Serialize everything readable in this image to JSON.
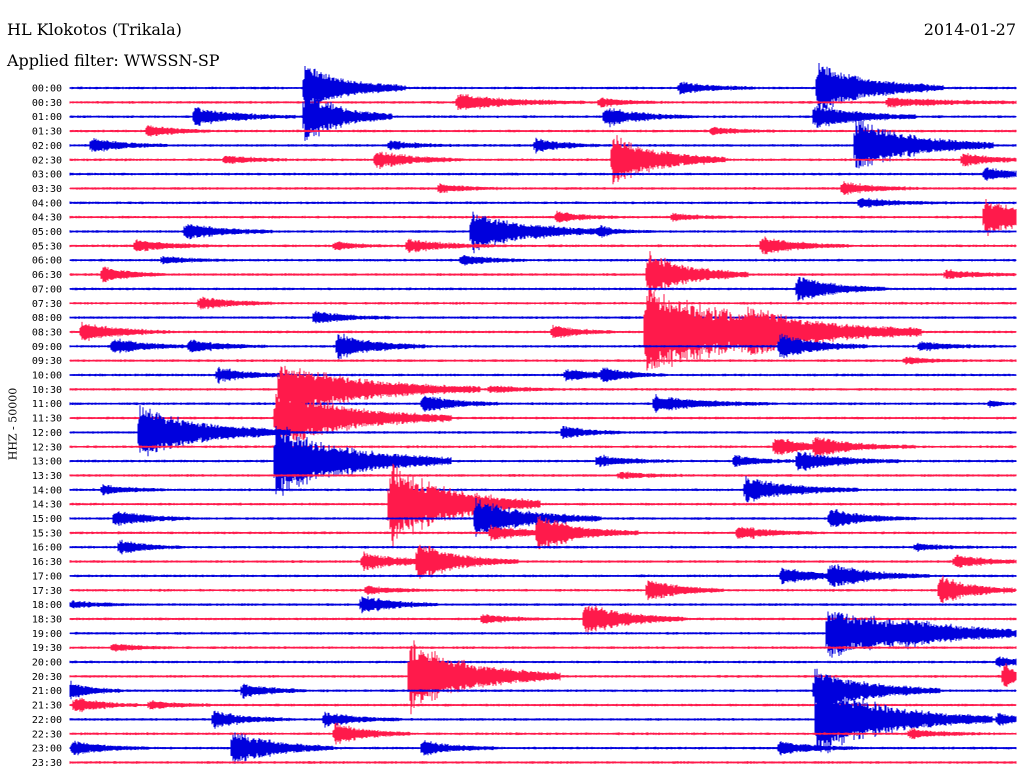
{
  "header": {
    "station": "HL Klokotos (Trikala)",
    "date": "2014-01-27",
    "filter": "Applied filter: WWSSN-SP"
  },
  "chart_data": {
    "type": "line",
    "title": "HL Klokotos (Trikala)",
    "subtitle": "Applied filter: WWSSN-SP",
    "ylabel": "HHZ - 50000",
    "xlabel": "",
    "series_colors": [
      "#0000dd",
      "#ff1a4b"
    ],
    "row_labels": [
      "00:00",
      "00:30",
      "01:00",
      "01:30",
      "02:00",
      "02:30",
      "03:00",
      "03:30",
      "04:00",
      "04:30",
      "05:00",
      "05:30",
      "06:00",
      "06:30",
      "07:00",
      "07:30",
      "08:00",
      "08:30",
      "09:00",
      "09:30",
      "10:00",
      "10:30",
      "11:00",
      "11:30",
      "12:00",
      "12:30",
      "13:00",
      "13:30",
      "14:00",
      "14:30",
      "15:00",
      "15:30",
      "16:00",
      "16:30",
      "17:00",
      "17:30",
      "18:00",
      "18:30",
      "19:00",
      "19:30",
      "20:00",
      "20:30",
      "21:00",
      "21:30",
      "22:00",
      "22:30",
      "23:00",
      "23:30"
    ],
    "events": [
      {
        "row": 0,
        "x": 305,
        "amp": 26,
        "dur": 40
      },
      {
        "row": 0,
        "x": 818,
        "amp": 28,
        "dur": 50
      },
      {
        "row": 0,
        "x": 680,
        "amp": 7,
        "dur": 30
      },
      {
        "row": 1,
        "x": 458,
        "amp": 9,
        "dur": 50
      },
      {
        "row": 1,
        "x": 600,
        "amp": 5,
        "dur": 25
      },
      {
        "row": 1,
        "x": 888,
        "amp": 5,
        "dur": 60
      },
      {
        "row": 2,
        "x": 305,
        "amp": 30,
        "dur": 35
      },
      {
        "row": 2,
        "x": 605,
        "amp": 11,
        "dur": 35
      },
      {
        "row": 2,
        "x": 815,
        "amp": 14,
        "dur": 40
      },
      {
        "row": 2,
        "x": 195,
        "amp": 10,
        "dur": 40
      },
      {
        "row": 3,
        "x": 148,
        "amp": 7,
        "dur": 25
      },
      {
        "row": 3,
        "x": 712,
        "amp": 4,
        "dur": 25
      },
      {
        "row": 4,
        "x": 856,
        "amp": 30,
        "dur": 55
      },
      {
        "row": 4,
        "x": 92,
        "amp": 8,
        "dur": 30
      },
      {
        "row": 4,
        "x": 536,
        "amp": 8,
        "dur": 25
      },
      {
        "row": 4,
        "x": 390,
        "amp": 5,
        "dur": 25
      },
      {
        "row": 5,
        "x": 613,
        "amp": 28,
        "dur": 45
      },
      {
        "row": 5,
        "x": 376,
        "amp": 10,
        "dur": 35
      },
      {
        "row": 5,
        "x": 963,
        "amp": 7,
        "dur": 30
      },
      {
        "row": 5,
        "x": 225,
        "amp": 5,
        "dur": 25
      },
      {
        "row": 6,
        "x": 985,
        "amp": 7,
        "dur": 30
      },
      {
        "row": 7,
        "x": 843,
        "amp": 7,
        "dur": 30
      },
      {
        "row": 7,
        "x": 440,
        "amp": 5,
        "dur": 25
      },
      {
        "row": 8,
        "x": 860,
        "amp": 5,
        "dur": 35
      },
      {
        "row": 9,
        "x": 985,
        "amp": 22,
        "dur": 40
      },
      {
        "row": 9,
        "x": 557,
        "amp": 6,
        "dur": 25
      },
      {
        "row": 9,
        "x": 673,
        "amp": 4,
        "dur": 25
      },
      {
        "row": 10,
        "x": 472,
        "amp": 22,
        "dur": 55
      },
      {
        "row": 10,
        "x": 186,
        "amp": 9,
        "dur": 35
      },
      {
        "row": 10,
        "x": 600,
        "amp": 4,
        "dur": 25
      },
      {
        "row": 11,
        "x": 762,
        "amp": 10,
        "dur": 35
      },
      {
        "row": 11,
        "x": 136,
        "amp": 7,
        "dur": 30
      },
      {
        "row": 11,
        "x": 408,
        "amp": 7,
        "dur": 35
      },
      {
        "row": 11,
        "x": 335,
        "amp": 5,
        "dur": 20
      },
      {
        "row": 12,
        "x": 462,
        "amp": 6,
        "dur": 25
      },
      {
        "row": 12,
        "x": 163,
        "amp": 4,
        "dur": 25
      },
      {
        "row": 13,
        "x": 103,
        "amp": 9,
        "dur": 25
      },
      {
        "row": 13,
        "x": 946,
        "amp": 5,
        "dur": 30
      },
      {
        "row": 13,
        "x": 648,
        "amp": 25,
        "dur": 40
      },
      {
        "row": 14,
        "x": 798,
        "amp": 14,
        "dur": 35
      },
      {
        "row": 15,
        "x": 200,
        "amp": 7,
        "dur": 30
      },
      {
        "row": 16,
        "x": 315,
        "amp": 7,
        "dur": 30
      },
      {
        "row": 17,
        "x": 646,
        "amp": 48,
        "dur": 110
      },
      {
        "row": 17,
        "x": 82,
        "amp": 11,
        "dur": 35
      },
      {
        "row": 17,
        "x": 749,
        "amp": 14,
        "dur": 35
      },
      {
        "row": 17,
        "x": 553,
        "amp": 7,
        "dur": 25
      },
      {
        "row": 18,
        "x": 338,
        "amp": 14,
        "dur": 35
      },
      {
        "row": 18,
        "x": 780,
        "amp": 14,
        "dur": 35
      },
      {
        "row": 18,
        "x": 113,
        "amp": 9,
        "dur": 30
      },
      {
        "row": 18,
        "x": 190,
        "amp": 7,
        "dur": 30
      },
      {
        "row": 18,
        "x": 920,
        "amp": 5,
        "dur": 30
      },
      {
        "row": 19,
        "x": 905,
        "amp": 4,
        "dur": 25
      },
      {
        "row": 20,
        "x": 218,
        "amp": 8,
        "dur": 30
      },
      {
        "row": 20,
        "x": 566,
        "amp": 7,
        "dur": 30
      },
      {
        "row": 20,
        "x": 603,
        "amp": 7,
        "dur": 25
      },
      {
        "row": 21,
        "x": 280,
        "amp": 30,
        "dur": 80
      },
      {
        "row": 21,
        "x": 490,
        "amp": 4,
        "dur": 30
      },
      {
        "row": 22,
        "x": 423,
        "amp": 10,
        "dur": 30
      },
      {
        "row": 22,
        "x": 655,
        "amp": 9,
        "dur": 45
      },
      {
        "row": 22,
        "x": 990,
        "amp": 4,
        "dur": 10
      },
      {
        "row": 23,
        "x": 276,
        "amp": 34,
        "dur": 70
      },
      {
        "row": 24,
        "x": 140,
        "amp": 30,
        "dur": 60
      },
      {
        "row": 24,
        "x": 563,
        "amp": 7,
        "dur": 25
      },
      {
        "row": 25,
        "x": 775,
        "amp": 10,
        "dur": 30
      },
      {
        "row": 25,
        "x": 815,
        "amp": 9,
        "dur": 40
      },
      {
        "row": 26,
        "x": 276,
        "amp": 40,
        "dur": 70
      },
      {
        "row": 26,
        "x": 798,
        "amp": 11,
        "dur": 40
      },
      {
        "row": 26,
        "x": 735,
        "amp": 6,
        "dur": 25
      },
      {
        "row": 26,
        "x": 598,
        "amp": 6,
        "dur": 30
      },
      {
        "row": 27,
        "x": 620,
        "amp": 4,
        "dur": 25
      },
      {
        "row": 28,
        "x": 746,
        "amp": 14,
        "dur": 45
      },
      {
        "row": 28,
        "x": 103,
        "amp": 5,
        "dur": 25
      },
      {
        "row": 29,
        "x": 390,
        "amp": 45,
        "dur": 60
      },
      {
        "row": 30,
        "x": 476,
        "amp": 22,
        "dur": 50
      },
      {
        "row": 30,
        "x": 115,
        "amp": 9,
        "dur": 30
      },
      {
        "row": 30,
        "x": 830,
        "amp": 10,
        "dur": 35
      },
      {
        "row": 31,
        "x": 538,
        "amp": 18,
        "dur": 40
      },
      {
        "row": 31,
        "x": 491,
        "amp": 8,
        "dur": 35
      },
      {
        "row": 31,
        "x": 738,
        "amp": 8,
        "dur": 30
      },
      {
        "row": 32,
        "x": 120,
        "amp": 8,
        "dur": 25
      },
      {
        "row": 32,
        "x": 916,
        "amp": 4,
        "dur": 25
      },
      {
        "row": 33,
        "x": 363,
        "amp": 10,
        "dur": 35
      },
      {
        "row": 33,
        "x": 418,
        "amp": 20,
        "dur": 40
      },
      {
        "row": 33,
        "x": 955,
        "amp": 7,
        "dur": 30
      },
      {
        "row": 34,
        "x": 782,
        "amp": 9,
        "dur": 35
      },
      {
        "row": 34,
        "x": 830,
        "amp": 12,
        "dur": 40
      },
      {
        "row": 35,
        "x": 648,
        "amp": 12,
        "dur": 30
      },
      {
        "row": 35,
        "x": 940,
        "amp": 16,
        "dur": 30
      },
      {
        "row": 35,
        "x": 367,
        "amp": 5,
        "dur": 25
      },
      {
        "row": 36,
        "x": 362,
        "amp": 10,
        "dur": 30
      },
      {
        "row": 36,
        "x": 72,
        "amp": 4,
        "dur": 25
      },
      {
        "row": 37,
        "x": 585,
        "amp": 18,
        "dur": 40
      },
      {
        "row": 37,
        "x": 483,
        "amp": 5,
        "dur": 25
      },
      {
        "row": 38,
        "x": 828,
        "amp": 28,
        "dur": 90
      },
      {
        "row": 38,
        "x": 907,
        "amp": 5,
        "dur": 40
      },
      {
        "row": 39,
        "x": 113,
        "amp": 4,
        "dur": 25
      },
      {
        "row": 40,
        "x": 998,
        "amp": 6,
        "dur": 20
      },
      {
        "row": 41,
        "x": 410,
        "amp": 40,
        "dur": 60
      },
      {
        "row": 41,
        "x": 1004,
        "amp": 14,
        "dur": 16
      },
      {
        "row": 42,
        "x": 70,
        "amp": 10,
        "dur": 20
      },
      {
        "row": 42,
        "x": 243,
        "amp": 8,
        "dur": 25
      },
      {
        "row": 42,
        "x": 815,
        "amp": 24,
        "dur": 50
      },
      {
        "row": 43,
        "x": 75,
        "amp": 9,
        "dur": 25
      },
      {
        "row": 43,
        "x": 150,
        "amp": 5,
        "dur": 25
      },
      {
        "row": 44,
        "x": 214,
        "amp": 9,
        "dur": 30
      },
      {
        "row": 44,
        "x": 325,
        "amp": 8,
        "dur": 30
      },
      {
        "row": 44,
        "x": 817,
        "amp": 40,
        "dur": 70
      },
      {
        "row": 44,
        "x": 998,
        "amp": 7,
        "dur": 20
      },
      {
        "row": 45,
        "x": 335,
        "amp": 12,
        "dur": 30
      },
      {
        "row": 45,
        "x": 910,
        "amp": 5,
        "dur": 30
      },
      {
        "row": 46,
        "x": 73,
        "amp": 8,
        "dur": 30
      },
      {
        "row": 46,
        "x": 233,
        "amp": 20,
        "dur": 40
      },
      {
        "row": 46,
        "x": 423,
        "amp": 8,
        "dur": 30
      },
      {
        "row": 46,
        "x": 780,
        "amp": 8,
        "dur": 30
      }
    ]
  }
}
